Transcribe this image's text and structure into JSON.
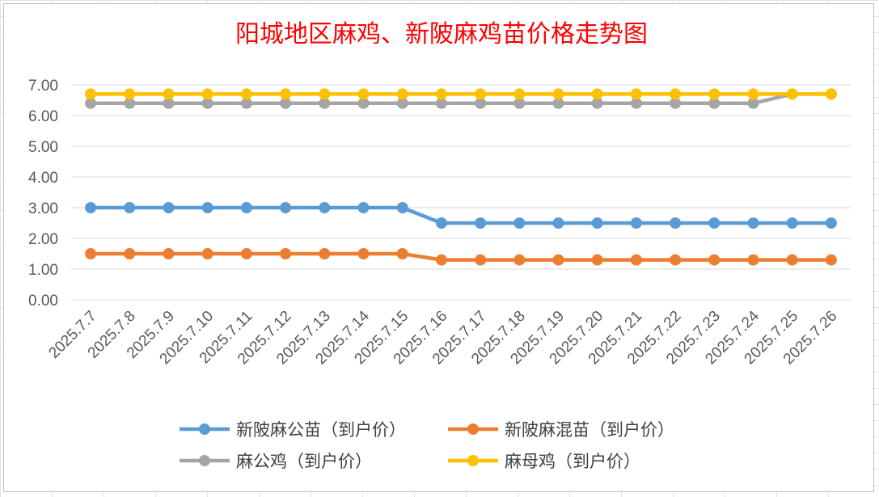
{
  "chart_data": {
    "type": "line",
    "title": "阳城地区麻鸡、新陂麻鸡苗价格走势图",
    "categories": [
      "2025.7.7",
      "2025.7.8",
      "2025.7.9",
      "2025.7.10",
      "2025.7.11",
      "2025.7.12",
      "2025.7.13",
      "2025.7.14",
      "2025.7.15",
      "2025.7.16",
      "2025.7.17",
      "2025.7.18",
      "2025.7.19",
      "2025.7.20",
      "2025.7.21",
      "2025.7.22",
      "2025.7.23",
      "2025.7.24",
      "2025.7.25",
      "2025.7.26"
    ],
    "y_ticks": [
      "0.00",
      "1.00",
      "2.00",
      "3.00",
      "4.00",
      "5.00",
      "6.00",
      "7.00"
    ],
    "ylim": [
      0,
      7
    ],
    "grid": true,
    "legend_position": "bottom",
    "series": [
      {
        "name": "新陂麻公苗（到户价）",
        "color": "#5b9bd5",
        "values": [
          3.0,
          3.0,
          3.0,
          3.0,
          3.0,
          3.0,
          3.0,
          3.0,
          3.0,
          2.5,
          2.5,
          2.5,
          2.5,
          2.5,
          2.5,
          2.5,
          2.5,
          2.5,
          2.5,
          2.5
        ]
      },
      {
        "name": "新陂麻混苗（到户价）",
        "color": "#ed7d31",
        "values": [
          1.5,
          1.5,
          1.5,
          1.5,
          1.5,
          1.5,
          1.5,
          1.5,
          1.5,
          1.3,
          1.3,
          1.3,
          1.3,
          1.3,
          1.3,
          1.3,
          1.3,
          1.3,
          1.3,
          1.3
        ]
      },
      {
        "name": "麻公鸡（到户价）",
        "color": "#a5a5a5",
        "values": [
          6.4,
          6.4,
          6.4,
          6.4,
          6.4,
          6.4,
          6.4,
          6.4,
          6.4,
          6.4,
          6.4,
          6.4,
          6.4,
          6.4,
          6.4,
          6.4,
          6.4,
          6.4,
          6.7,
          6.7
        ]
      },
      {
        "name": "麻母鸡（到户价）",
        "color": "#ffc000",
        "values": [
          6.7,
          6.7,
          6.7,
          6.7,
          6.7,
          6.7,
          6.7,
          6.7,
          6.7,
          6.7,
          6.7,
          6.7,
          6.7,
          6.7,
          6.7,
          6.7,
          6.7,
          6.7,
          6.7,
          6.7
        ]
      }
    ]
  }
}
